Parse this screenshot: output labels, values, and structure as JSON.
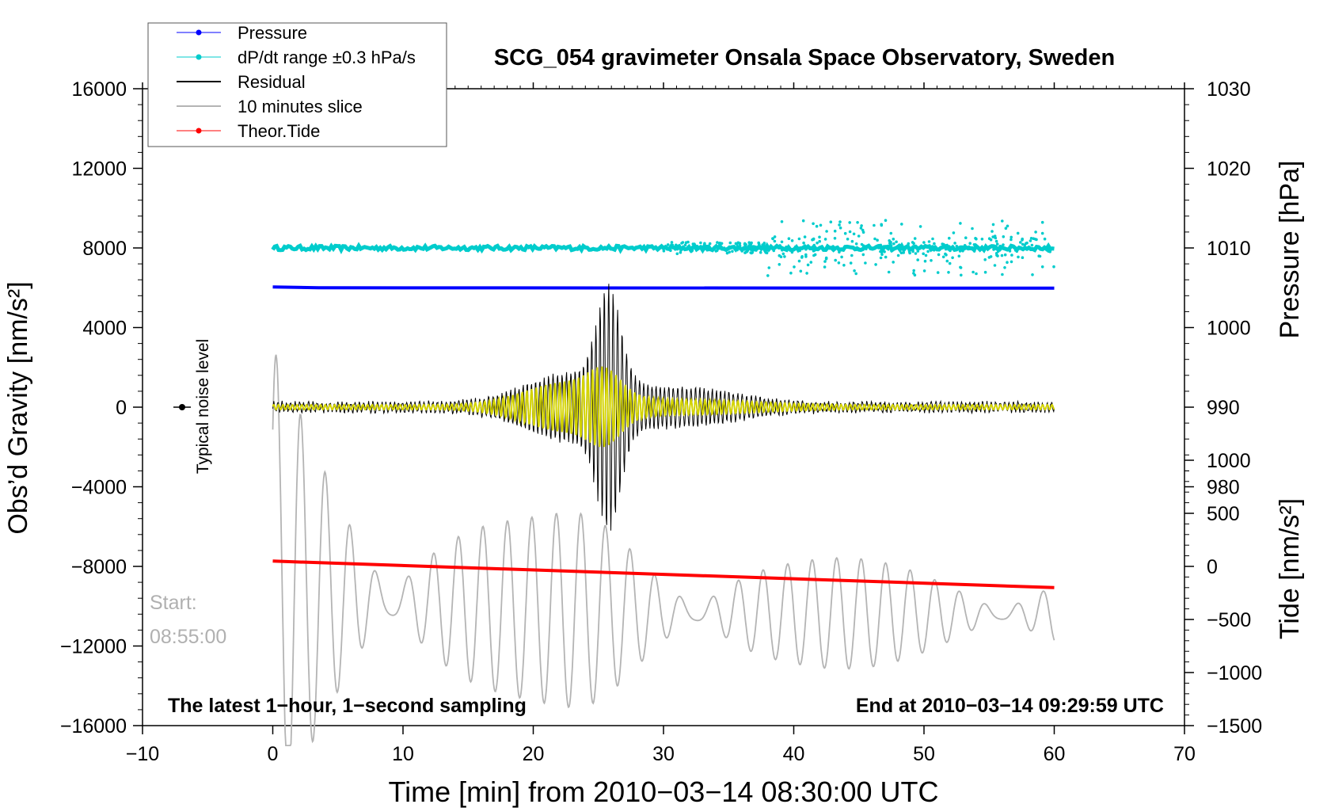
{
  "chart_data": {
    "type": "line",
    "title": "SCG_054 gravimeter Onsala Space Observatory, Sweden",
    "xlabel": "Time [min] from 2010−03−14 08:30:00 UTC",
    "ylabel_left": "Obs’d Gravity [nm/s²]",
    "ylabel_right_top": "Pressure [hPa]",
    "ylabel_right_bottom": "Tide [nm/s²]",
    "xlim": [
      -10,
      70
    ],
    "ylim_left": [
      -16000,
      16000
    ],
    "x_ticks": [
      {
        "v": -10,
        "t": "−10"
      },
      {
        "v": 0,
        "t": "0"
      },
      {
        "v": 10,
        "t": "10"
      },
      {
        "v": 20,
        "t": "20"
      },
      {
        "v": 30,
        "t": "30"
      },
      {
        "v": 40,
        "t": "40"
      },
      {
        "v": 50,
        "t": "50"
      },
      {
        "v": 60,
        "t": "60"
      },
      {
        "v": 70,
        "t": "70"
      }
    ],
    "y_left_ticks": [
      {
        "v": 16000,
        "t": "16000"
      },
      {
        "v": 12000,
        "t": "12000"
      },
      {
        "v": 8000,
        "t": "8000"
      },
      {
        "v": 4000,
        "t": "4000"
      },
      {
        "v": 0,
        "t": "0"
      },
      {
        "v": -4000,
        "t": "−4000"
      },
      {
        "v": -8000,
        "t": "−8000"
      },
      {
        "v": -12000,
        "t": "−12000"
      },
      {
        "v": -16000,
        "t": "−16000"
      }
    ],
    "pressure_axis": {
      "ref_hpa": 1030,
      "ref_left": 16000,
      "left_per_hpa": 400,
      "ticks": [
        {
          "v": 1030,
          "t": "1030"
        },
        {
          "v": 1020,
          "t": "1020"
        },
        {
          "v": 1010,
          "t": "1010"
        },
        {
          "v": 1000,
          "t": "1000"
        },
        {
          "v": 990,
          "t": "990"
        },
        {
          "v": 980,
          "t": "980"
        }
      ]
    },
    "tide_axis": {
      "ref_tide": -1500,
      "ref_left": -16000,
      "left_per_tide": 5.3333,
      "ticks": [
        {
          "v": 1000,
          "t": "1000"
        },
        {
          "v": 500,
          "t": "500"
        },
        {
          "v": 0,
          "t": "0"
        },
        {
          "v": -500,
          "t": "−500"
        },
        {
          "v": -1000,
          "t": "−1000"
        },
        {
          "v": -1500,
          "t": "−1500"
        }
      ]
    },
    "series": [
      {
        "name": "Pressure",
        "color": "#0000ff",
        "style": "line-marker",
        "axis": "pressure",
        "x": [
          0,
          3.5,
          60
        ],
        "values": [
          1005.1,
          1005.0,
          1004.95
        ]
      },
      {
        "name": "dP/dt range ±0.3 hPa/s",
        "color": "#00cccc",
        "style": "dots",
        "axis": "left",
        "center": 8000,
        "x_range": [
          0,
          60
        ]
      },
      {
        "name": "Residual",
        "color": "#000000",
        "style": "line",
        "axis": "left",
        "x_range": [
          0,
          60
        ],
        "peak_minute": 25.8,
        "peak_max": 6500,
        "peak_min": -6500
      },
      {
        "name": "10 minutes slice",
        "color": "#b4b4b4",
        "style": "line",
        "axis": "left",
        "x_range": [
          0,
          60
        ]
      },
      {
        "name": "Theor.Tide",
        "color": "#ff0000",
        "style": "line-marker",
        "axis": "tide",
        "x": [
          0,
          60
        ],
        "values": [
          50,
          -200
        ]
      }
    ],
    "filtered_trace_color": "#d4d400",
    "legend_position": "top-left",
    "annotations": {
      "noise": "Typical noise level",
      "start_label": "Start:",
      "start_time": "08:55:00",
      "footer_left": "The latest 1−hour, 1−second sampling",
      "footer_right": "End at 2010−03−14 09:29:59 UTC"
    }
  }
}
